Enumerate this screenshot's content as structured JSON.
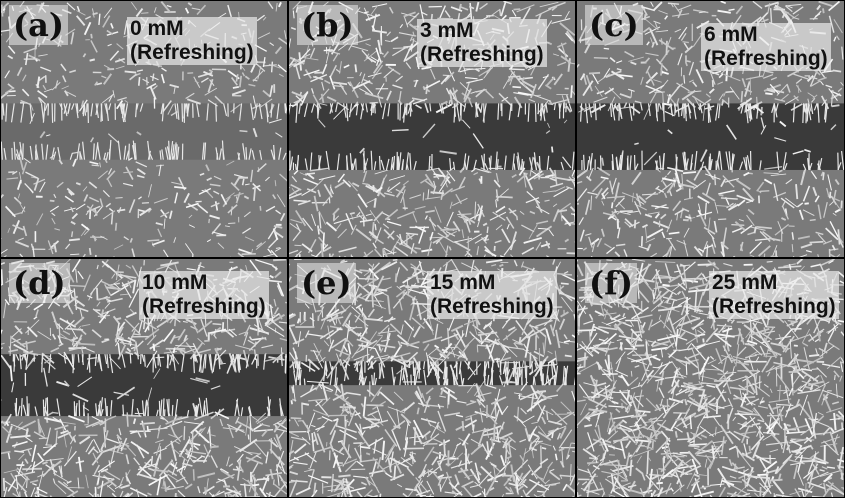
{
  "figure": {
    "panels": [
      {
        "id": "a",
        "letter": "(a)",
        "concentration": "0 mM",
        "note": "(Refreshing)",
        "density": 0.35,
        "gap": "wide"
      },
      {
        "id": "b",
        "letter": "(b)",
        "concentration": "3 mM",
        "note": "(Refreshing)",
        "density": 0.7,
        "gap": "dark"
      },
      {
        "id": "c",
        "letter": "(c)",
        "concentration": "6 mM",
        "note": "(Refreshing)",
        "density": 0.6,
        "gap": "dark"
      },
      {
        "id": "d",
        "letter": "(d)",
        "concentration": "10 mM",
        "note": "(Refreshing)",
        "density": 0.85,
        "gap": "dark"
      },
      {
        "id": "e",
        "letter": "(e)",
        "concentration": "15 mM",
        "note": "(Refreshing)",
        "density": 0.9,
        "gap": "narrow"
      },
      {
        "id": "f",
        "letter": "(f)",
        "concentration": "25 mM",
        "note": "(Refreshing)",
        "density": 1.0,
        "gap": "none"
      }
    ]
  },
  "colors": {
    "substrate": "#7a7a7a",
    "gap_dark": "#3a3a3a",
    "wire": "#e8e8e8"
  }
}
